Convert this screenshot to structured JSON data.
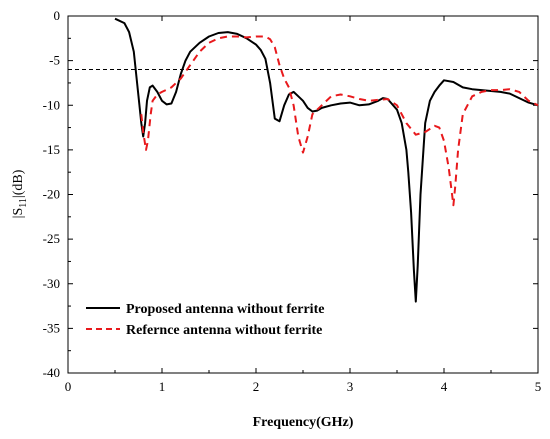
{
  "chart_data": {
    "type": "line",
    "xlabel": "Frequency(GHz)",
    "ylabel_main": "|S",
    "ylabel_sub": "11",
    "ylabel_tail": "|(dB)",
    "xlim": [
      0,
      5
    ],
    "ylim": [
      -40,
      0
    ],
    "xticks": [
      0,
      1,
      2,
      3,
      4,
      5
    ],
    "yticks": [
      0,
      -5,
      -10,
      -15,
      -20,
      -25,
      -30,
      -35,
      -40
    ],
    "grid": false,
    "legend_position": "bottom-left",
    "reference_line": {
      "y": -6,
      "style": "dashed",
      "color": "#000000"
    },
    "series": [
      {
        "name": "Proposed antenna without ferrite",
        "color": "#000000",
        "style": "solid",
        "x": [
          0.5,
          0.6,
          0.65,
          0.7,
          0.75,
          0.78,
          0.8,
          0.82,
          0.84,
          0.87,
          0.9,
          0.95,
          1.0,
          1.05,
          1.1,
          1.15,
          1.2,
          1.25,
          1.3,
          1.4,
          1.5,
          1.6,
          1.7,
          1.8,
          1.9,
          2.0,
          2.05,
          2.1,
          2.15,
          2.2,
          2.25,
          2.3,
          2.35,
          2.4,
          2.45,
          2.5,
          2.55,
          2.6,
          2.65,
          2.7,
          2.8,
          2.9,
          3.0,
          3.1,
          3.2,
          3.3,
          3.35,
          3.4,
          3.5,
          3.55,
          3.6,
          3.62,
          3.65,
          3.68,
          3.7,
          3.72,
          3.75,
          3.8,
          3.85,
          3.9,
          3.95,
          4.0,
          4.1,
          4.2,
          4.3,
          4.4,
          4.5,
          4.6,
          4.7,
          4.8,
          4.9,
          5.0
        ],
        "y": [
          -0.3,
          -0.8,
          -1.8,
          -4.0,
          -9.0,
          -12.0,
          -13.5,
          -12.0,
          -9.5,
          -8.0,
          -7.8,
          -8.5,
          -9.5,
          -9.9,
          -9.8,
          -8.5,
          -6.5,
          -5.0,
          -4.0,
          -3.0,
          -2.3,
          -1.9,
          -1.8,
          -2.0,
          -2.5,
          -3.2,
          -3.8,
          -4.8,
          -7.5,
          -11.5,
          -11.8,
          -10.0,
          -8.8,
          -8.5,
          -9.0,
          -9.5,
          -10.3,
          -10.7,
          -10.6,
          -10.3,
          -10.0,
          -9.8,
          -9.7,
          -10.0,
          -9.9,
          -9.5,
          -9.2,
          -9.3,
          -10.5,
          -12.0,
          -15.0,
          -17.5,
          -22.0,
          -28.5,
          -32.0,
          -28.0,
          -20.0,
          -12.0,
          -9.5,
          -8.5,
          -7.8,
          -7.2,
          -7.4,
          -8.0,
          -8.2,
          -8.3,
          -8.4,
          -8.5,
          -8.7,
          -9.2,
          -9.7,
          -10.0
        ]
      },
      {
        "name": "Refernce antenna without ferrite",
        "color": "#e8191c",
        "style": "dashed",
        "x": [
          0.78,
          0.8,
          0.83,
          0.85,
          0.88,
          0.9,
          0.95,
          1.0,
          1.1,
          1.2,
          1.3,
          1.4,
          1.5,
          1.6,
          1.7,
          1.8,
          1.9,
          2.0,
          2.1,
          2.15,
          2.2,
          2.25,
          2.3,
          2.35,
          2.4,
          2.45,
          2.5,
          2.55,
          2.6,
          2.7,
          2.8,
          2.9,
          3.0,
          3.1,
          3.2,
          3.3,
          3.4,
          3.5,
          3.6,
          3.7,
          3.8,
          3.9,
          3.95,
          4.0,
          4.05,
          4.08,
          4.1,
          4.12,
          4.15,
          4.2,
          4.3,
          4.4,
          4.5,
          4.6,
          4.7,
          4.8,
          4.9,
          5.0
        ],
        "y": [
          -11.0,
          -13.0,
          -15.0,
          -14.0,
          -11.0,
          -9.5,
          -8.8,
          -8.5,
          -8.0,
          -7.0,
          -5.5,
          -4.0,
          -3.0,
          -2.5,
          -2.3,
          -2.3,
          -2.4,
          -2.3,
          -2.3,
          -2.6,
          -3.5,
          -5.5,
          -7.0,
          -8.0,
          -10.0,
          -13.5,
          -15.3,
          -13.5,
          -11.0,
          -10.0,
          -9.0,
          -8.8,
          -9.0,
          -9.3,
          -9.5,
          -9.4,
          -9.3,
          -10.0,
          -12.0,
          -13.3,
          -13.0,
          -12.3,
          -12.5,
          -14.0,
          -17.0,
          -19.5,
          -21.2,
          -19.0,
          -15.0,
          -11.0,
          -9.0,
          -8.5,
          -8.3,
          -8.3,
          -8.2,
          -8.5,
          -9.5,
          -10.0
        ]
      }
    ]
  }
}
